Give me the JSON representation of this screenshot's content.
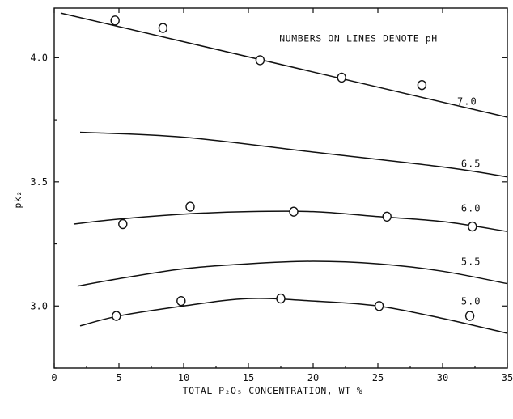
{
  "chart_data": {
    "type": "scatter",
    "title": "",
    "xlabel": "TOTAL P₂O₅ CONCENTRATION, WT %",
    "ylabel": "pk₂",
    "xlim": [
      0,
      35
    ],
    "ylim": [
      2.75,
      4.2
    ],
    "xticks": [
      0,
      5,
      10,
      15,
      20,
      25,
      30,
      35
    ],
    "yticks": [
      3.0,
      3.5,
      4.0
    ],
    "xtick_labels": [
      "0",
      "5",
      "10",
      "15",
      "20",
      "25",
      "30",
      "35"
    ],
    "ytick_labels": [
      "3.0",
      "3.5",
      "4.0"
    ],
    "annotation": "NUMBERS ON LINES DENOTE pH",
    "grid": false,
    "series": [
      {
        "name": "7.0",
        "curve": [
          [
            0.5,
            4.18
          ],
          [
            35,
            3.76
          ]
        ],
        "points": [
          [
            4.7,
            4.15
          ],
          [
            8.4,
            4.12
          ],
          [
            15.9,
            3.99
          ],
          [
            22.2,
            3.92
          ],
          [
            28.4,
            3.89
          ]
        ]
      },
      {
        "name": "6.5",
        "curve": [
          [
            2,
            3.7
          ],
          [
            10,
            3.68
          ],
          [
            20,
            3.62
          ],
          [
            30,
            3.56
          ],
          [
            35,
            3.52
          ]
        ],
        "points": []
      },
      {
        "name": "6.0",
        "curve": [
          [
            1.5,
            3.33
          ],
          [
            5,
            3.35
          ],
          [
            10,
            3.37
          ],
          [
            15,
            3.38
          ],
          [
            20,
            3.38
          ],
          [
            25,
            3.36
          ],
          [
            30,
            3.34
          ],
          [
            35,
            3.3
          ]
        ],
        "points": [
          [
            5.3,
            3.33
          ],
          [
            10.5,
            3.4
          ],
          [
            18.5,
            3.38
          ],
          [
            25.7,
            3.36
          ],
          [
            32.3,
            3.32
          ]
        ]
      },
      {
        "name": "5.5",
        "curve": [
          [
            1.8,
            3.08
          ],
          [
            5,
            3.11
          ],
          [
            10,
            3.15
          ],
          [
            15,
            3.17
          ],
          [
            20,
            3.18
          ],
          [
            25,
            3.17
          ],
          [
            30,
            3.14
          ],
          [
            35,
            3.09
          ]
        ],
        "points": []
      },
      {
        "name": "5.0",
        "curve": [
          [
            2,
            2.92
          ],
          [
            5,
            2.96
          ],
          [
            10,
            3.0
          ],
          [
            15,
            3.03
          ],
          [
            20,
            3.02
          ],
          [
            25,
            3.0
          ],
          [
            30,
            2.95
          ],
          [
            35,
            2.89
          ]
        ],
        "points": [
          [
            4.8,
            2.96
          ],
          [
            9.8,
            3.02
          ],
          [
            17.5,
            3.03
          ],
          [
            25.1,
            3.0
          ],
          [
            32.1,
            2.96
          ]
        ]
      }
    ]
  }
}
